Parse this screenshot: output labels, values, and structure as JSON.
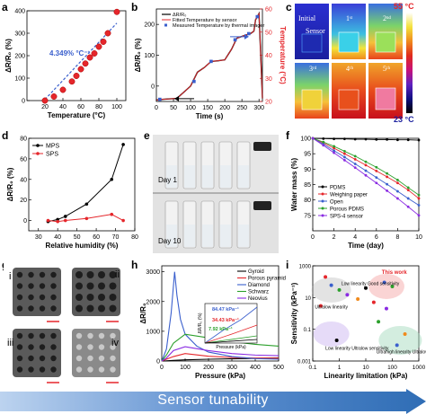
{
  "banner": {
    "text": "Sensor tunability",
    "color": "#2f6db5"
  },
  "panel_labels": {
    "a": "a",
    "b": "b",
    "c": "c",
    "d": "d",
    "e": "e",
    "f": "f",
    "g": "g",
    "h": "h",
    "i": "i"
  },
  "chart_data": [
    {
      "id": "a",
      "type": "scatter",
      "xlabel": "Temperature (°C)",
      "ylabel": "ΔR/R₀ (%)",
      "xlim": [
        0,
        110
      ],
      "ylim": [
        0,
        400
      ],
      "xticks": [
        20,
        40,
        60,
        80,
        100
      ],
      "yticks": [
        0,
        100,
        200,
        300,
        400
      ],
      "annotation": "4.349% °C⁻¹",
      "series": [
        {
          "x": [
            20,
            30,
            40,
            50,
            55,
            60,
            65,
            70,
            75,
            80,
            85,
            90,
            100
          ],
          "y": [
            0,
            18,
            48,
            85,
            110,
            140,
            165,
            192,
            210,
            240,
            262,
            300,
            395
          ]
        }
      ],
      "fit": {
        "x": [
          20,
          100
        ],
        "y": [
          5,
          345
        ]
      },
      "colors": {
        "marker": "#e5262b",
        "fit": "#3a5fcd"
      }
    },
    {
      "id": "b",
      "type": "line",
      "xlabel": "Time (s)",
      "ylabel": "ΔR/R₀ (%)",
      "ylabel2": "Temperature (°C)",
      "xlim": [
        0,
        310
      ],
      "ylim": [
        -50,
        250
      ],
      "ylim2": [
        20,
        60
      ],
      "xticks": [
        0,
        50,
        100,
        150,
        200,
        250,
        300
      ],
      "yticks": [
        0,
        100,
        200
      ],
      "yticks2": [
        20,
        30,
        40,
        50,
        60
      ],
      "legend": [
        "ΔR/R₀",
        "Fitted Temperature by sensor",
        "Measured Temperature by thermal imager"
      ],
      "series": [
        {
          "name": "ΔR/R₀",
          "x": [
            0,
            20,
            60,
            100,
            120,
            140,
            160,
            180,
            200,
            220,
            235,
            260,
            275,
            285,
            290,
            300,
            305,
            310
          ],
          "y": [
            -45,
            -43,
            -40,
            0,
            45,
            60,
            80,
            82,
            85,
            120,
            155,
            165,
            170,
            178,
            215,
            235,
            100,
            -40
          ]
        },
        {
          "name": "Fitted Temperature by sensor",
          "x": [
            0,
            20,
            60,
            100,
            120,
            140,
            160,
            180,
            200,
            220,
            235,
            260,
            275,
            285,
            290,
            300,
            305,
            310
          ],
          "y": [
            -45,
            -43,
            -40,
            0,
            45,
            60,
            80,
            82,
            85,
            120,
            155,
            165,
            170,
            178,
            215,
            235,
            100,
            -40
          ]
        },
        {
          "name": "Measured Temperature by thermal imager",
          "x": [
            10,
            110,
            160,
            230,
            270,
            295
          ],
          "y": [
            -43,
            15,
            80,
            150,
            170,
            225
          ]
        }
      ],
      "colors": {
        "raw": "#000000",
        "fit": "#e5262b",
        "measured": "#3a5fcd"
      }
    },
    {
      "id": "d",
      "type": "line",
      "xlabel": "Relative humidity (%)",
      "ylabel": "ΔR/R₀ (%)",
      "xlim": [
        25,
        80
      ],
      "ylim": [
        -10,
        80
      ],
      "xticks": [
        30,
        40,
        50,
        60,
        70,
        80
      ],
      "yticks": [
        0,
        20,
        40,
        60,
        80
      ],
      "series": [
        {
          "name": "MPS",
          "x": [
            35,
            40,
            44,
            55,
            68,
            74
          ],
          "y": [
            -1,
            1,
            4,
            16,
            40,
            74
          ]
        },
        {
          "name": "SPS",
          "x": [
            35,
            40,
            44,
            55,
            68,
            74
          ],
          "y": [
            0,
            -1,
            0,
            2,
            6,
            0
          ]
        }
      ],
      "colors": {
        "MPS": "#000000",
        "SPS": "#e5262b"
      }
    },
    {
      "id": "f",
      "type": "line",
      "xlabel": "Time (day)",
      "ylabel": "Water mass (%)",
      "xlim": [
        0,
        10
      ],
      "ylim": [
        70,
        100
      ],
      "xticks": [
        0,
        2,
        4,
        6,
        8,
        10
      ],
      "yticks": [
        75,
        80,
        85,
        90,
        95,
        100
      ],
      "series": [
        {
          "name": "PDMS",
          "x": [
            0,
            1,
            2,
            3,
            4,
            5,
            6,
            7,
            8,
            9,
            10
          ],
          "y": [
            100,
            99.9,
            99.8,
            99.8,
            99.7,
            99.7,
            99.6,
            99.6,
            99.5,
            99.5,
            99.4
          ]
        },
        {
          "name": "Weighing paper",
          "x": [
            0,
            1,
            2,
            3,
            4,
            5,
            6,
            7,
            8,
            9,
            10
          ],
          "y": [
            100,
            98.5,
            96.8,
            95.0,
            93.2,
            91.3,
            89.4,
            87.5,
            85.5,
            83.2,
            80.5
          ]
        },
        {
          "name": "Open",
          "x": [
            0,
            1,
            2,
            3,
            4,
            5,
            6,
            7,
            8,
            9,
            10
          ],
          "y": [
            100,
            98.1,
            96.0,
            93.9,
            91.7,
            89.5,
            87.3,
            85.1,
            82.8,
            80.5,
            78.3
          ]
        },
        {
          "name": "Porous PDMS",
          "x": [
            0,
            1,
            2,
            3,
            4,
            5,
            6,
            7,
            8,
            9,
            10
          ],
          "y": [
            100,
            98.8,
            97.4,
            95.8,
            94.2,
            92.4,
            90.6,
            88.6,
            86.5,
            84.0,
            81.6
          ]
        },
        {
          "name": "SPS-4 sensor",
          "x": [
            0,
            1,
            2,
            3,
            4,
            5,
            6,
            7,
            8,
            9,
            10
          ],
          "y": [
            100,
            97.7,
            95.3,
            92.9,
            90.5,
            88.0,
            85.5,
            83.0,
            80.5,
            77.8,
            75.0
          ]
        }
      ],
      "colors": {
        "PDMS": "#000000",
        "Weighing paper": "#e5262b",
        "Open": "#3a5fcd",
        "Porous PDMS": "#2ca02c",
        "SPS-4 sensor": "#8a2be2"
      }
    },
    {
      "id": "h",
      "type": "line",
      "xlabel": "Pressure (kPa)",
      "ylabel": "ΔR/R₀",
      "xlim": [
        0,
        500
      ],
      "ylim": [
        0,
        3200
      ],
      "xticks": [
        0,
        100,
        200,
        300,
        400,
        500
      ],
      "yticks": [
        0,
        1000,
        2000,
        3000
      ],
      "series": [
        {
          "name": "Gyroid",
          "x": [
            0,
            20,
            50,
            100,
            200,
            300,
            400,
            500
          ],
          "y": [
            0,
            5,
            20,
            40,
            60,
            75,
            90,
            105
          ]
        },
        {
          "name": "Porous pyramid",
          "x": [
            0,
            20,
            50,
            100,
            200,
            300,
            400,
            500
          ],
          "y": [
            0,
            60,
            150,
            250,
            160,
            120,
            100,
            95
          ]
        },
        {
          "name": "Diamond",
          "x": [
            0,
            20,
            40,
            55,
            65,
            80,
            100,
            150,
            200,
            300,
            400,
            500
          ],
          "y": [
            0,
            400,
            1600,
            3000,
            2200,
            1400,
            900,
            500,
            300,
            150,
            80,
            60
          ]
        },
        {
          "name": "Schwarz",
          "x": [
            0,
            20,
            50,
            100,
            200,
            300,
            400,
            500
          ],
          "y": [
            0,
            200,
            600,
            900,
            780,
            650,
            560,
            500
          ]
        },
        {
          "name": "Neovius",
          "x": [
            0,
            20,
            50,
            100,
            200,
            300,
            400,
            500
          ],
          "y": [
            0,
            100,
            350,
            480,
            350,
            250,
            200,
            180
          ]
        }
      ],
      "inset": {
        "annotations": [
          "84.47 kPa⁻¹",
          "34.43 kPa⁻¹",
          "7.92 kPa⁻¹"
        ],
        "xlabel": "Pressure (kPa)",
        "ylabel": "ΔR/R₀ (%)"
      },
      "colors": {
        "Gyroid": "#000000",
        "Porous pyramid": "#e5262b",
        "Diamond": "#3a5fcd",
        "Schwarz": "#2ca02c",
        "Neovius": "#8a2be2"
      }
    },
    {
      "id": "i",
      "type": "scatter",
      "xlabel": "Linearity limitation (kPa)",
      "ylabel": "Sensitivity (kPa⁻¹)",
      "xlim": [
        0.1,
        1000
      ],
      "ylim": [
        0.001,
        1000
      ],
      "xscale": "log",
      "yscale": "log",
      "annotations": [
        "Low linearity Good sensitivity",
        "This work",
        "Ultralow linearity",
        "Low linearity Ultralow sensitivity",
        "Ultrahigh linearity Ultralow sensitivity"
      ],
      "points": [
        {
          "x": 0.3,
          "y": 200
        },
        {
          "x": 0.5,
          "y": 60
        },
        {
          "x": 1,
          "y": 30
        },
        {
          "x": 2,
          "y": 15
        },
        {
          "x": 5,
          "y": 8
        },
        {
          "x": 10,
          "y": 40
        },
        {
          "x": 20,
          "y": 5
        },
        {
          "x": 50,
          "y": 90
        },
        {
          "x": 100,
          "y": 50
        },
        {
          "x": 60,
          "y": 2
        },
        {
          "x": 300,
          "y": 0.05
        },
        {
          "x": 0.8,
          "y": 0.02
        },
        {
          "x": 0.2,
          "y": 3
        },
        {
          "x": 150,
          "y": 0.01
        },
        {
          "x": 30,
          "y": 0.3
        }
      ]
    }
  ],
  "panel_c": {
    "captions": [
      "Initial",
      "1ˢᵗ",
      "2ⁿᵈ",
      "3ʳᵈ",
      "4ᵗʰ",
      "5ᵗʰ"
    ],
    "sensor_label": "Sensor",
    "colorbar_top": "55 °C",
    "colorbar_bottom": "23 °C"
  },
  "panel_e": {
    "day1": "Day 1",
    "day10": "Day 10"
  },
  "panel_g": {
    "labels": [
      "i",
      "ii",
      "iii",
      "iv"
    ]
  }
}
